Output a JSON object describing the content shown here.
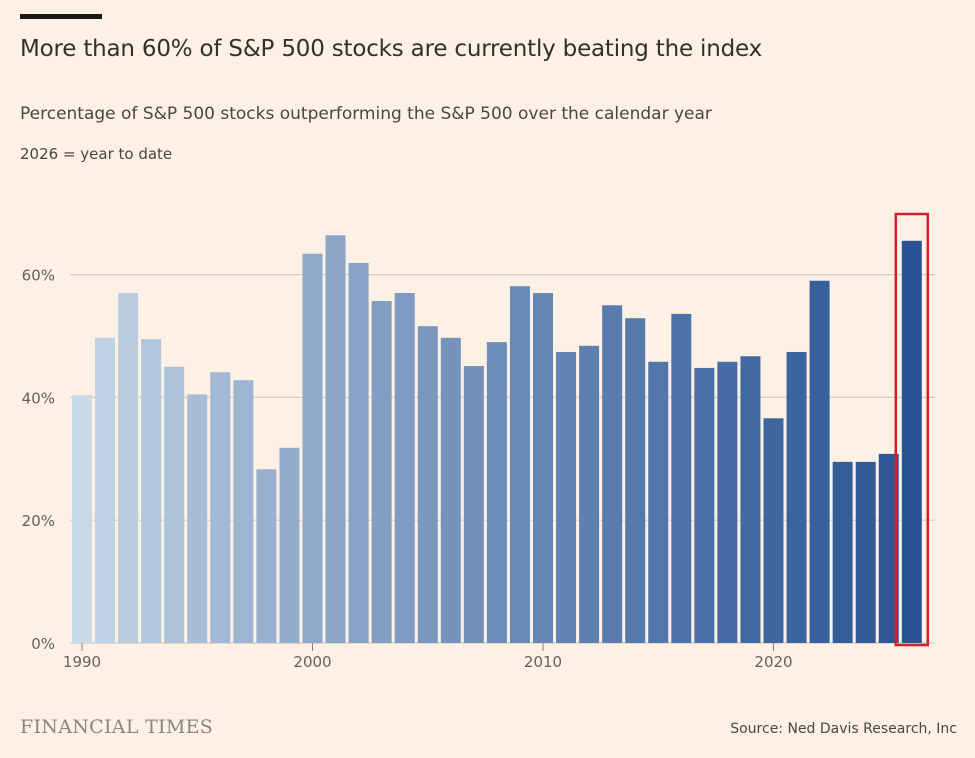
{
  "header": {
    "title": "More than 60% of S&P 500 stocks are currently beating the index",
    "subtitle": "Percentage of S&P 500 stocks outperforming the S&P 500 over the calendar year",
    "note": "2026 = year to date"
  },
  "footer": {
    "brand": "FINANCIAL TIMES",
    "source": "Source: Ned Davis Research, Inc"
  },
  "colors": {
    "background": "#fdf1e6",
    "bar_start": "#c9d9e8",
    "bar_end": "#2a5494",
    "highlight_box": "#d0202e"
  },
  "chart_data": {
    "type": "bar",
    "title": "More than 60% of S&P 500 stocks are currently beating the index",
    "subtitle": "Percentage of S&P 500 stocks outperforming the S&P 500 over the calendar year",
    "categories": [
      1990,
      1991,
      1992,
      1993,
      1994,
      1995,
      1996,
      1997,
      1998,
      1999,
      2000,
      2001,
      2002,
      2003,
      2004,
      2005,
      2006,
      2007,
      2008,
      2009,
      2010,
      2011,
      2012,
      2013,
      2014,
      2015,
      2016,
      2017,
      2018,
      2019,
      2020,
      2021,
      2022,
      2023,
      2024,
      2025,
      2026
    ],
    "values": [
      40.4,
      49.7,
      57,
      49.5,
      45,
      40.5,
      44.1,
      42.8,
      28.3,
      31.8,
      63.4,
      66.4,
      61.9,
      55.7,
      57,
      51.6,
      49.7,
      45.1,
      49,
      58.1,
      57,
      47.4,
      48.4,
      55,
      52.9,
      45.8,
      53.6,
      44.8,
      45.8,
      46.7,
      36.6,
      47.4,
      59,
      29.5,
      29.5,
      30.8,
      65.5
    ],
    "highlighted": 2026,
    "ylim": [
      0,
      70
    ],
    "yticks": [
      0,
      20,
      40,
      60
    ],
    "ytick_labels": [
      "0%",
      "20%",
      "40%",
      "60%"
    ],
    "xticks": [
      1990,
      2000,
      2010,
      2020
    ],
    "xtick_labels": [
      "1990",
      "2000",
      "2010",
      "2020"
    ],
    "grid": "horizontal",
    "xlabel": "",
    "ylabel": ""
  }
}
